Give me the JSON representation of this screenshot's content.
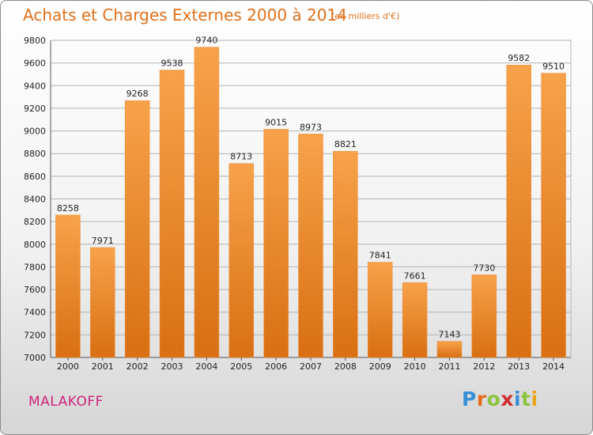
{
  "header": {
    "title": "Achats et Charges Externes 2000 à 2014",
    "subtitle": "(en milliers d'€)"
  },
  "footer": {
    "city": "MALAKOFF",
    "logo_letters": [
      {
        "ch": "P",
        "color": "#3a8fd8"
      },
      {
        "ch": "r",
        "color": "#e86a1a"
      },
      {
        "ch": "o",
        "color": "#8bc43f"
      },
      {
        "ch": "x",
        "color": "#d02f2f"
      },
      {
        "ch": "i",
        "color": "#3a8fd8"
      },
      {
        "ch": "t",
        "color": "#8bc43f"
      },
      {
        "ch": "i",
        "color": "#e8a51a"
      }
    ]
  },
  "chart_data": {
    "type": "bar",
    "title": "Achats et Charges Externes 2000 à 2014",
    "subtitle": "(en milliers d'€)",
    "categories": [
      "2000",
      "2001",
      "2002",
      "2003",
      "2004",
      "2005",
      "2006",
      "2007",
      "2008",
      "2009",
      "2010",
      "2011",
      "2012",
      "2013",
      "2014"
    ],
    "values": [
      8258,
      7971,
      9268,
      9538,
      9740,
      8713,
      9015,
      8973,
      8821,
      7841,
      7661,
      7143,
      7730,
      9582,
      9510
    ],
    "ylim": [
      7000,
      9800
    ],
    "yticks": [
      7000,
      7200,
      7400,
      7600,
      7800,
      8000,
      8200,
      8400,
      8600,
      8800,
      9000,
      9200,
      9400,
      9600,
      9800
    ],
    "grid": true,
    "colors": {
      "bar_light": "#f7a24a",
      "bar_dark": "#d96f12",
      "text": "#222222",
      "grid": "#b4b4b4"
    }
  }
}
